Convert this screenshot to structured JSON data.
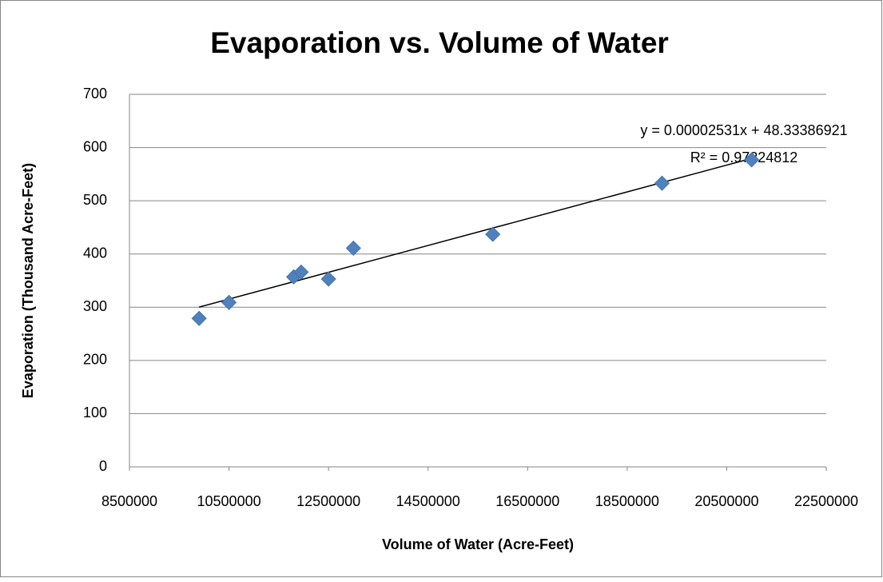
{
  "chart_data": {
    "type": "scatter",
    "title": "Evaporation vs. Volume of Water",
    "x_label": "Volume of Water (Acre-Feet)",
    "y_label": "Evaporation (Thousand Acre-Feet)",
    "equation_label": "y = 0.00002531x + 48.33386921",
    "r_squared_label": "R² = 0.97224812",
    "trendline": true,
    "color": "#4f81bd",
    "x": [
      9900000,
      10500000,
      11800000,
      11950000,
      12500000,
      13000000,
      15800000,
      19200000,
      21000000
    ],
    "values": [
      279,
      309,
      357,
      366,
      353,
      411,
      437,
      533,
      577
    ],
    "xlim": [
      8500000,
      22500000
    ],
    "xticks": [
      8500000,
      10500000,
      12500000,
      14500000,
      16500000,
      18500000,
      20500000,
      22500000
    ],
    "ylim": [
      0,
      700
    ],
    "yticks": [
      0,
      100,
      200,
      300,
      400,
      500,
      600,
      700
    ],
    "grid": true
  }
}
